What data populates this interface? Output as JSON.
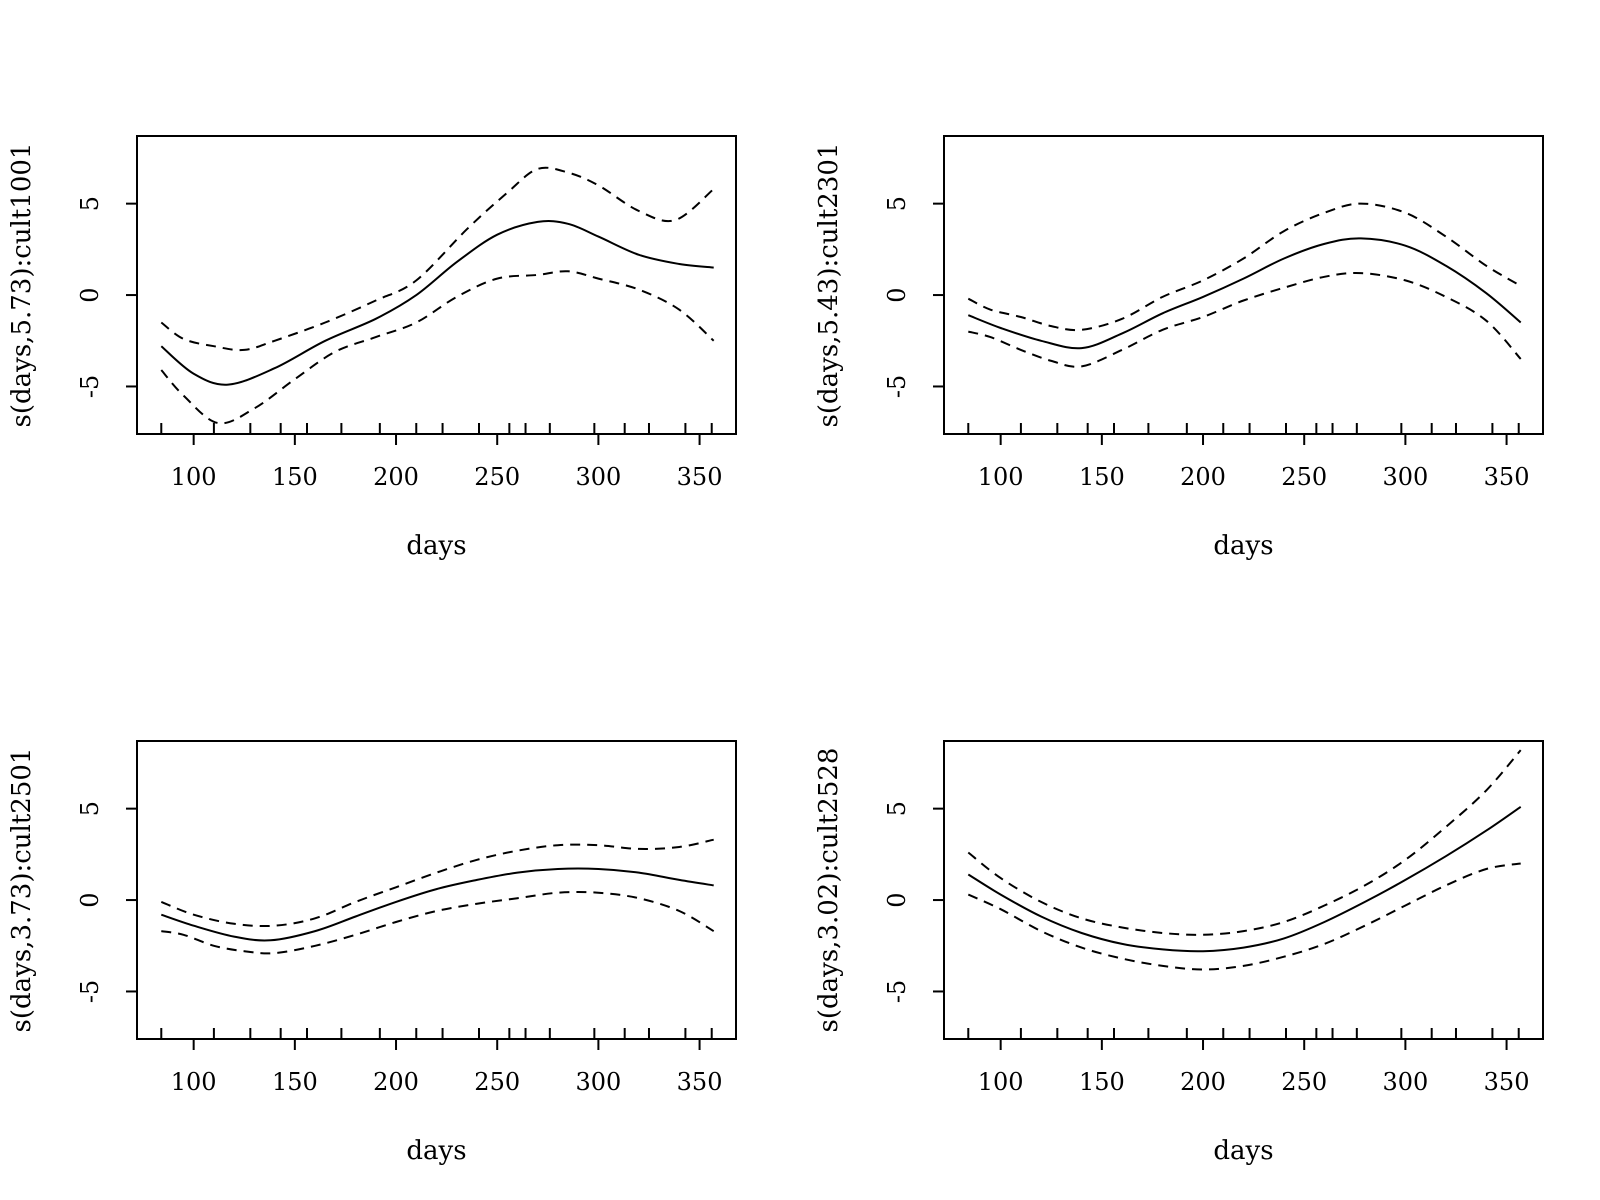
{
  "chart_data": [
    {
      "type": "line",
      "title": "",
      "xlabel": "days",
      "ylabel": "s(days,5.73):cult1001",
      "xlim": [
        72,
        368
      ],
      "ylim": [
        -7.6,
        8.7
      ],
      "xticks": [
        100,
        150,
        200,
        250,
        300,
        350
      ],
      "yticks": [
        -5,
        0,
        5
      ],
      "rug": [
        84,
        110,
        128,
        143,
        156,
        173,
        192,
        210,
        223,
        241,
        256,
        264,
        276,
        298,
        313,
        325,
        343,
        356
      ],
      "series": [
        {
          "style": "solid",
          "x": [
            84,
            100,
            117,
            140,
            165,
            190,
            210,
            230,
            250,
            270,
            285,
            300,
            320,
            340,
            357
          ],
          "y": [
            -2.8,
            -4.3,
            -4.9,
            -4.0,
            -2.5,
            -1.3,
            0.0,
            1.8,
            3.3,
            4.0,
            3.9,
            3.2,
            2.2,
            1.7,
            1.5
          ]
        },
        {
          "style": "dashed",
          "x": [
            84,
            95,
            110,
            125,
            140,
            165,
            190,
            210,
            235,
            255,
            270,
            285,
            300,
            320,
            338,
            357
          ],
          "y": [
            -1.5,
            -2.4,
            -2.8,
            -3.0,
            -2.5,
            -1.5,
            -0.3,
            0.8,
            3.6,
            5.6,
            6.9,
            6.7,
            6.0,
            4.6,
            4.1,
            5.8
          ]
        },
        {
          "style": "dashed",
          "x": [
            84,
            95,
            112,
            130,
            150,
            170,
            190,
            210,
            230,
            250,
            270,
            285,
            300,
            320,
            340,
            357
          ],
          "y": [
            -4.1,
            -5.5,
            -7.0,
            -6.2,
            -4.6,
            -3.1,
            -2.3,
            -1.5,
            -0.1,
            0.9,
            1.1,
            1.3,
            0.9,
            0.3,
            -0.8,
            -2.5
          ]
        }
      ]
    },
    {
      "type": "line",
      "title": "",
      "xlabel": "days",
      "ylabel": "s(days,5.43):cult2301",
      "xlim": [
        72,
        368
      ],
      "ylim": [
        -7.6,
        8.7
      ],
      "xticks": [
        100,
        150,
        200,
        250,
        300,
        350
      ],
      "yticks": [
        -5,
        0,
        5
      ],
      "rug": [
        84,
        110,
        128,
        143,
        156,
        173,
        192,
        210,
        223,
        241,
        256,
        264,
        276,
        298,
        313,
        325,
        343,
        356
      ],
      "series": [
        {
          "style": "solid",
          "x": [
            84,
            100,
            120,
            140,
            160,
            180,
            200,
            220,
            240,
            260,
            278,
            300,
            320,
            340,
            357
          ],
          "y": [
            -1.1,
            -1.8,
            -2.5,
            -2.9,
            -2.1,
            -1.0,
            -0.1,
            0.9,
            2.0,
            2.8,
            3.1,
            2.7,
            1.6,
            0.1,
            -1.5
          ]
        },
        {
          "style": "dashed",
          "x": [
            84,
            95,
            110,
            125,
            140,
            160,
            180,
            200,
            220,
            240,
            260,
            278,
            300,
            320,
            340,
            357
          ],
          "y": [
            -0.2,
            -0.8,
            -1.2,
            -1.7,
            -1.9,
            -1.3,
            -0.1,
            0.8,
            2.0,
            3.5,
            4.5,
            5.0,
            4.5,
            3.2,
            1.6,
            0.5
          ]
        },
        {
          "style": "dashed",
          "x": [
            84,
            95,
            110,
            125,
            140,
            160,
            180,
            200,
            220,
            240,
            260,
            278,
            300,
            320,
            340,
            357
          ],
          "y": [
            -2.0,
            -2.3,
            -3.0,
            -3.6,
            -3.9,
            -3.0,
            -1.9,
            -1.2,
            -0.3,
            0.4,
            1.0,
            1.2,
            0.8,
            -0.1,
            -1.4,
            -3.5
          ]
        }
      ]
    },
    {
      "type": "line",
      "title": "",
      "xlabel": "days",
      "ylabel": "s(days,3.73):cult2501",
      "xlim": [
        72,
        368
      ],
      "ylim": [
        -7.6,
        8.7
      ],
      "xticks": [
        100,
        150,
        200,
        250,
        300,
        350
      ],
      "yticks": [
        -5,
        0,
        5
      ],
      "rug": [
        84,
        110,
        128,
        143,
        156,
        173,
        192,
        210,
        223,
        241,
        256,
        264,
        276,
        298,
        313,
        325,
        343,
        356
      ],
      "series": [
        {
          "style": "solid",
          "x": [
            84,
            100,
            120,
            138,
            160,
            180,
            200,
            220,
            240,
            260,
            280,
            300,
            320,
            340,
            357
          ],
          "y": [
            -0.8,
            -1.4,
            -2.0,
            -2.2,
            -1.7,
            -0.9,
            -0.1,
            0.6,
            1.1,
            1.5,
            1.7,
            1.7,
            1.5,
            1.1,
            0.8
          ]
        },
        {
          "style": "dashed",
          "x": [
            84,
            100,
            120,
            140,
            160,
            180,
            200,
            220,
            240,
            260,
            280,
            300,
            320,
            340,
            357
          ],
          "y": [
            -0.1,
            -0.8,
            -1.3,
            -1.4,
            -1.0,
            -0.1,
            0.7,
            1.5,
            2.2,
            2.7,
            3.0,
            3.0,
            2.8,
            2.9,
            3.3
          ]
        },
        {
          "style": "dashed",
          "x": [
            84,
            95,
            110,
            125,
            140,
            160,
            180,
            200,
            220,
            240,
            260,
            280,
            300,
            320,
            340,
            357
          ],
          "y": [
            -1.7,
            -1.9,
            -2.5,
            -2.8,
            -2.9,
            -2.5,
            -1.9,
            -1.2,
            -0.6,
            -0.2,
            0.1,
            0.4,
            0.4,
            0.1,
            -0.6,
            -1.7
          ]
        }
      ]
    },
    {
      "type": "line",
      "title": "",
      "xlabel": "days",
      "ylabel": "s(days,3.02):cult2528",
      "xlim": [
        72,
        368
      ],
      "ylim": [
        -7.6,
        8.7
      ],
      "xticks": [
        100,
        150,
        200,
        250,
        300,
        350
      ],
      "yticks": [
        -5,
        0,
        5
      ],
      "rug": [
        84,
        110,
        128,
        143,
        156,
        173,
        192,
        210,
        223,
        241,
        256,
        264,
        276,
        298,
        313,
        325,
        343,
        356
      ],
      "series": [
        {
          "style": "solid",
          "x": [
            84,
            100,
            120,
            140,
            160,
            180,
            200,
            220,
            240,
            260,
            280,
            300,
            320,
            340,
            357
          ],
          "y": [
            1.4,
            0.3,
            -0.9,
            -1.8,
            -2.4,
            -2.7,
            -2.8,
            -2.6,
            -2.1,
            -1.2,
            -0.1,
            1.1,
            2.4,
            3.8,
            5.1
          ]
        },
        {
          "style": "dashed",
          "x": [
            84,
            100,
            120,
            140,
            160,
            180,
            200,
            220,
            240,
            260,
            280,
            300,
            320,
            340,
            357
          ],
          "y": [
            2.6,
            1.2,
            -0.1,
            -1.0,
            -1.5,
            -1.8,
            -1.9,
            -1.7,
            -1.2,
            -0.3,
            0.8,
            2.2,
            4.0,
            6.0,
            8.2
          ]
        },
        {
          "style": "dashed",
          "x": [
            84,
            100,
            120,
            140,
            160,
            180,
            200,
            220,
            240,
            260,
            280,
            300,
            320,
            340,
            357
          ],
          "y": [
            0.3,
            -0.5,
            -1.7,
            -2.6,
            -3.2,
            -3.6,
            -3.8,
            -3.6,
            -3.1,
            -2.4,
            -1.4,
            -0.3,
            0.8,
            1.7,
            2.0
          ]
        }
      ]
    }
  ]
}
